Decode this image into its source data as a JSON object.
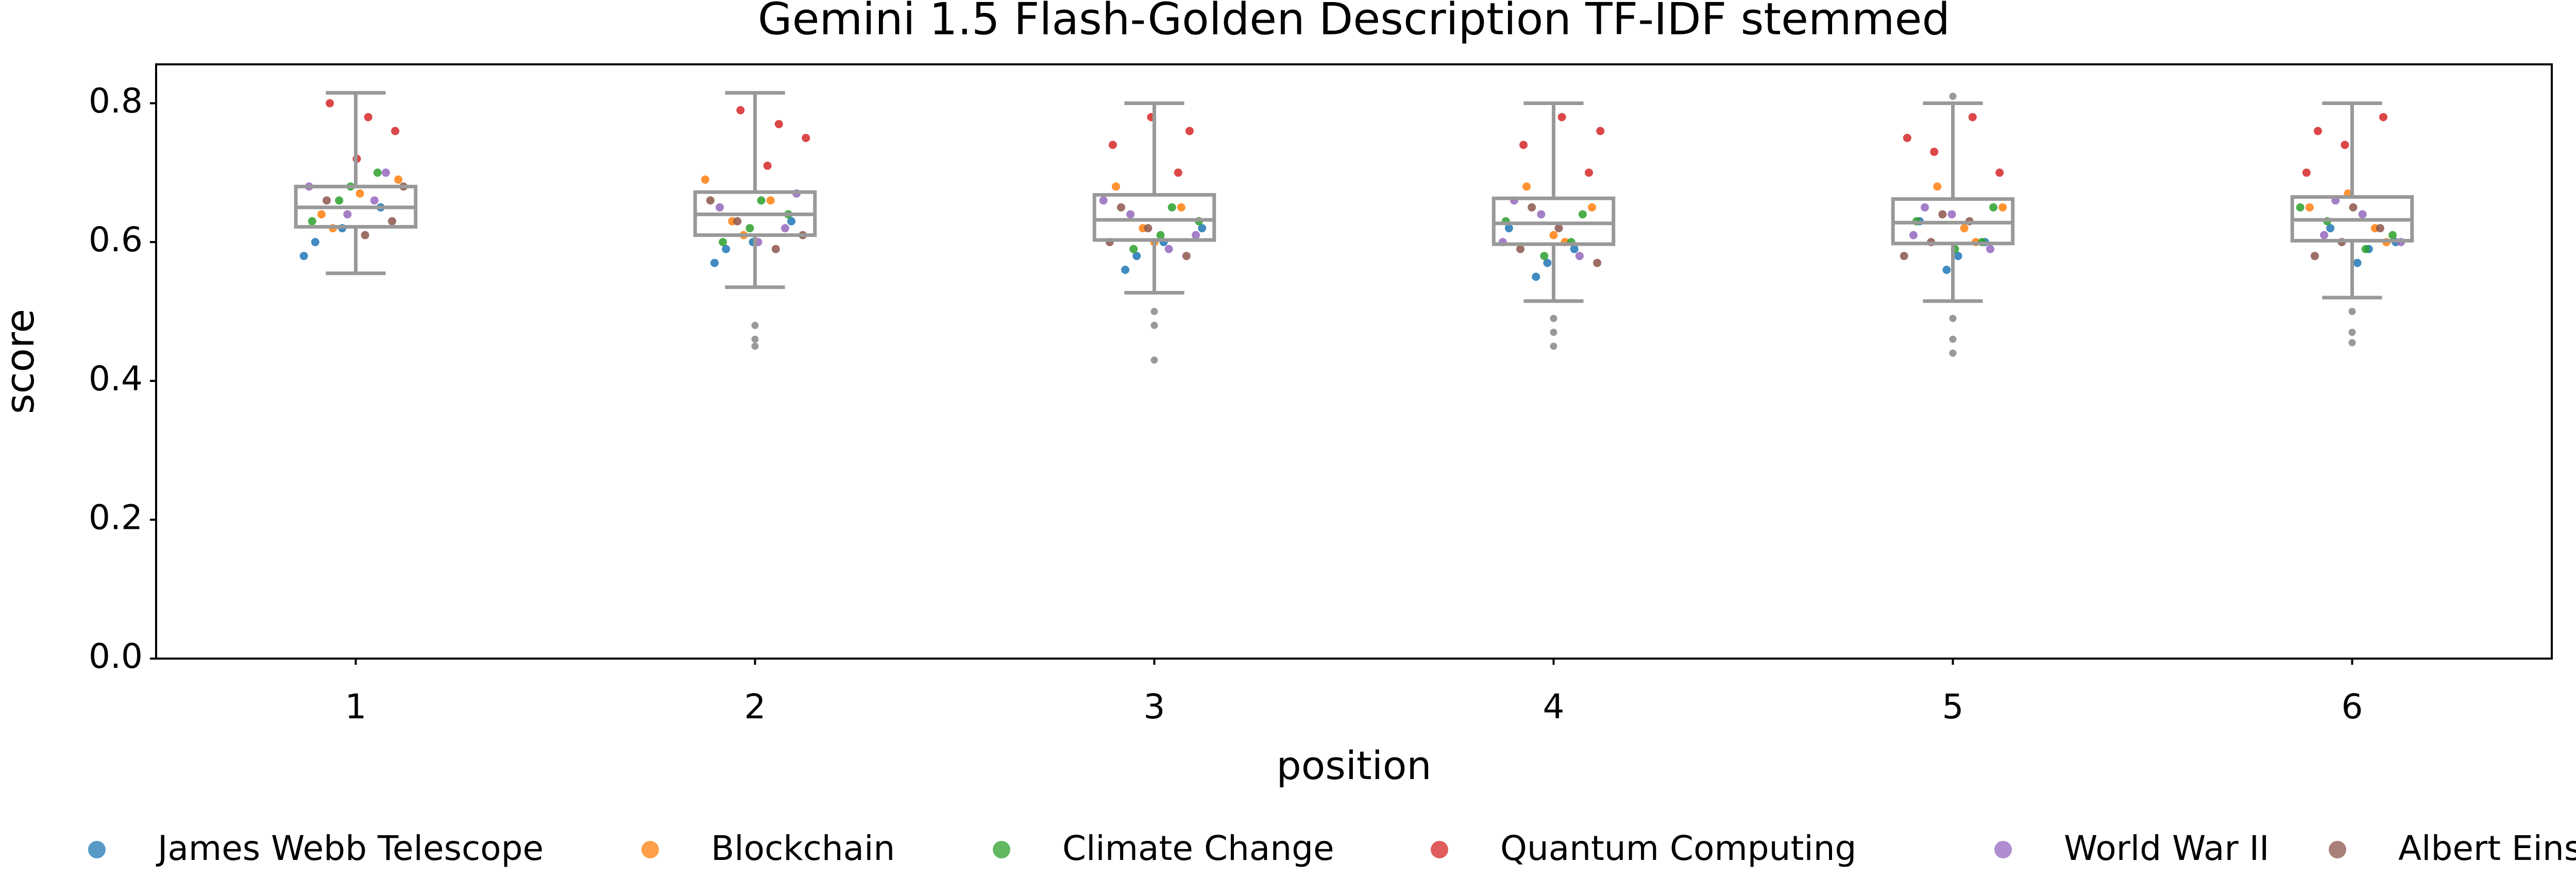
{
  "chart_data": {
    "type": "box",
    "title": "Gemini 1.5 Flash-Golden Description TF-IDF stemmed",
    "x_label": "position",
    "y_label": "score",
    "categories": [
      "1",
      "2",
      "3",
      "4",
      "5",
      "6"
    ],
    "ylim": [
      0,
      0.856
    ],
    "yticks": [
      {
        "value": 0,
        "label": "0.0"
      },
      0.2,
      0.4,
      0.6,
      0.8
    ],
    "box_color": "#999999",
    "legend": "bottom",
    "boxes": [
      {
        "whislo": 0.555,
        "q1": 0.622,
        "med": 0.65,
        "q3": 0.68,
        "whishi": 0.815,
        "fliers": []
      },
      {
        "whislo": 0.535,
        "q1": 0.61,
        "med": 0.64,
        "q3": 0.672,
        "whishi": 0.815,
        "fliers": [
          0.48,
          0.46,
          0.45
        ]
      },
      {
        "whislo": 0.527,
        "q1": 0.603,
        "med": 0.632,
        "q3": 0.668,
        "whishi": 0.8,
        "fliers": [
          0.5,
          0.48,
          0.43
        ]
      },
      {
        "whislo": 0.515,
        "q1": 0.597,
        "med": 0.627,
        "q3": 0.663,
        "whishi": 0.8,
        "fliers": [
          0.49,
          0.47,
          0.45
        ]
      },
      {
        "whislo": 0.515,
        "q1": 0.598,
        "med": 0.628,
        "q3": 0.662,
        "whishi": 0.8,
        "fliers": [
          0.81,
          0.49,
          0.46,
          0.44
        ]
      },
      {
        "whislo": 0.52,
        "q1": 0.602,
        "med": 0.632,
        "q3": 0.665,
        "whishi": 0.8,
        "fliers": [
          0.5,
          0.47,
          0.455
        ]
      }
    ],
    "series": [
      {
        "name": "James Webb Telescope",
        "color": "#1f77b4",
        "values": [
          [
            0.58,
            0.62,
            0.65,
            0.6
          ],
          [
            0.57,
            0.6,
            0.63,
            0.59
          ],
          [
            0.56,
            0.6,
            0.62,
            0.58
          ],
          [
            0.55,
            0.59,
            0.62,
            0.57
          ],
          [
            0.56,
            0.6,
            0.63,
            0.58
          ],
          [
            0.57,
            0.6,
            0.62,
            0.59
          ]
        ]
      },
      {
        "name": "Blockchain",
        "color": "#ff7f0e",
        "values": [
          [
            0.64,
            0.67,
            0.69,
            0.62
          ],
          [
            0.63,
            0.66,
            0.69,
            0.61
          ],
          [
            0.62,
            0.65,
            0.68,
            0.6
          ],
          [
            0.61,
            0.65,
            0.68,
            0.6
          ],
          [
            0.62,
            0.65,
            0.68,
            0.6
          ],
          [
            0.62,
            0.65,
            0.67,
            0.6
          ]
        ]
      },
      {
        "name": "Climate Change",
        "color": "#2ca02c",
        "values": [
          [
            0.66,
            0.7,
            0.63,
            0.68
          ],
          [
            0.62,
            0.64,
            0.6,
            0.66
          ],
          [
            0.61,
            0.63,
            0.59,
            0.65
          ],
          [
            0.6,
            0.63,
            0.58,
            0.64
          ],
          [
            0.6,
            0.63,
            0.59,
            0.65
          ],
          [
            0.61,
            0.63,
            0.59,
            0.65
          ]
        ]
      },
      {
        "name": "Quantum Computing",
        "color": "#d62728",
        "values": [
          [
            0.72,
            0.76,
            0.8,
            0.78
          ],
          [
            0.71,
            0.75,
            0.79,
            0.77
          ],
          [
            0.7,
            0.74,
            0.78,
            0.76
          ],
          [
            0.7,
            0.74,
            0.78,
            0.76
          ],
          [
            0.7,
            0.73,
            0.78,
            0.75
          ],
          [
            0.7,
            0.74,
            0.78,
            0.76
          ]
        ]
      },
      {
        "name": "World War II",
        "color": "#9467bd",
        "values": [
          [
            0.66,
            0.68,
            0.64,
            0.7
          ],
          [
            0.62,
            0.65,
            0.6,
            0.67
          ],
          [
            0.61,
            0.64,
            0.59,
            0.66
          ],
          [
            0.6,
            0.64,
            0.58,
            0.66
          ],
          [
            0.61,
            0.64,
            0.59,
            0.65
          ],
          [
            0.61,
            0.64,
            0.6,
            0.66
          ]
        ]
      },
      {
        "name": "Albert Einstein",
        "color": "#8c564b",
        "values": [
          [
            0.63,
            0.66,
            0.61,
            0.68
          ],
          [
            0.61,
            0.63,
            0.59,
            0.66
          ],
          [
            0.6,
            0.62,
            0.58,
            0.65
          ],
          [
            0.59,
            0.62,
            0.57,
            0.65
          ],
          [
            0.6,
            0.63,
            0.58,
            0.64
          ],
          [
            0.6,
            0.62,
            0.58,
            0.65
          ]
        ]
      }
    ]
  }
}
